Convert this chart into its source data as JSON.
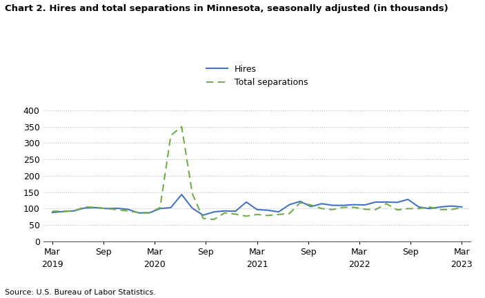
{
  "title": "Chart 2. Hires and total separations in Minnesota, seasonally adjusted (in thousands)",
  "source": "Source: U.S. Bureau of Labor Statistics.",
  "hires_color": "#4472C4",
  "separations_color": "#70AD47",
  "background_color": "#FFFFFF",
  "ylim": [
    0,
    400
  ],
  "yticks": [
    0,
    50,
    100,
    150,
    200,
    250,
    300,
    350,
    400
  ],
  "hires": [
    88,
    91,
    93,
    102,
    103,
    100,
    101,
    98,
    87,
    87,
    100,
    103,
    143,
    101,
    80,
    90,
    93,
    92,
    120,
    97,
    95,
    90,
    112,
    122,
    106,
    115,
    110,
    110,
    112,
    111,
    120,
    120,
    119,
    128,
    105,
    100,
    105,
    108,
    105
  ],
  "separations": [
    92,
    92,
    93,
    105,
    104,
    100,
    97,
    93,
    88,
    87,
    103,
    323,
    350,
    145,
    70,
    67,
    87,
    83,
    77,
    82,
    79,
    82,
    85,
    118,
    111,
    100,
    97,
    104,
    104,
    98,
    97,
    115,
    96,
    100,
    100,
    105,
    97,
    97,
    103
  ],
  "tick_months": [
    0,
    6,
    12,
    18,
    24,
    30,
    36,
    42,
    48
  ],
  "tick_labels": [
    "Mar",
    "Sep",
    "Mar",
    "Sep",
    "Mar",
    "Sep",
    "Mar",
    "Sep",
    "Mar"
  ],
  "year_months": [
    0,
    12,
    24,
    36,
    48
  ],
  "year_labels": [
    "2019",
    "2020",
    "2021",
    "2022",
    "2023"
  ],
  "total_months": 48,
  "n_points": 39
}
